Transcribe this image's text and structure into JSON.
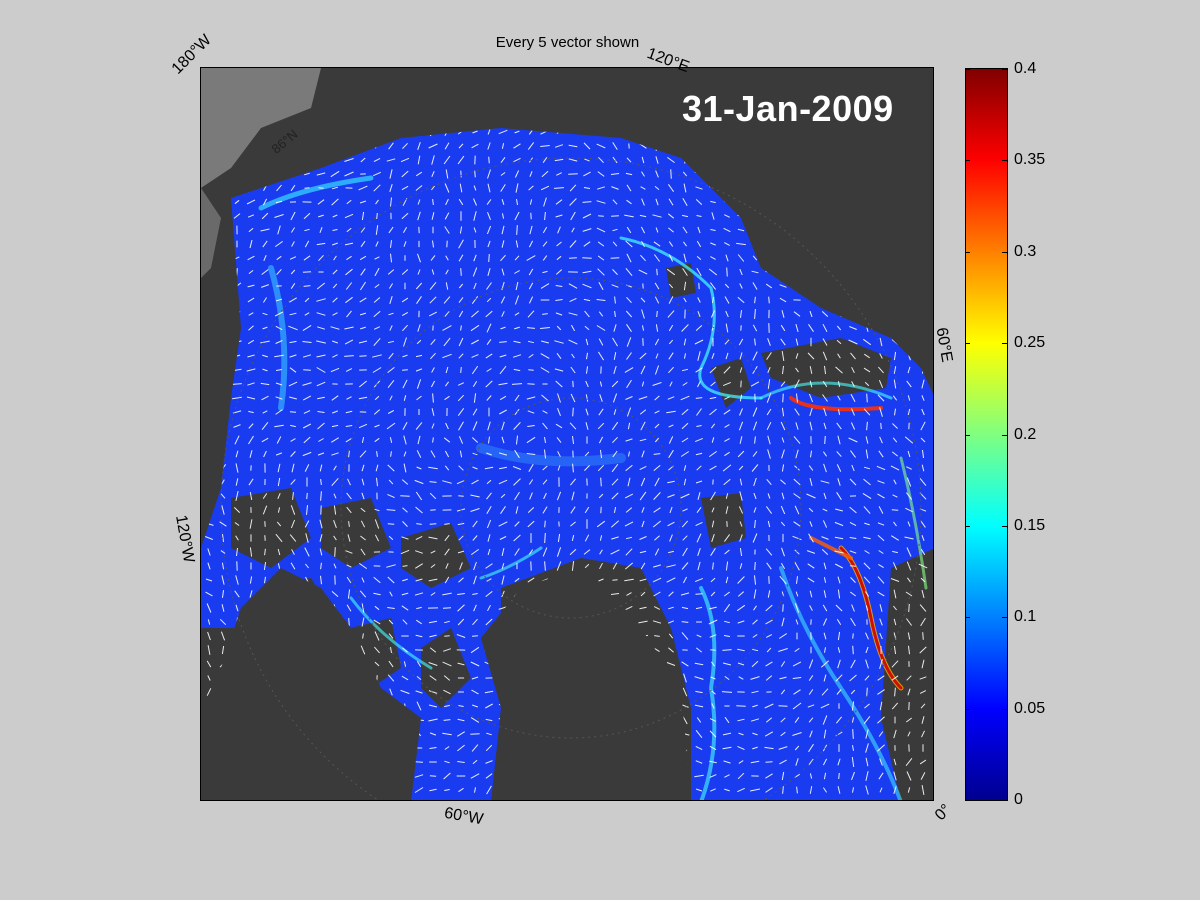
{
  "title": "Every 5 vector shown",
  "date": "31-Jan-2009",
  "longitude_labels": [
    "180°W",
    "120°E",
    "60°E",
    "120°W",
    "60°W",
    "0°"
  ],
  "latitude_labels": [
    "86°N"
  ],
  "colorbar": {
    "ticks": [
      "0",
      "0.05",
      "0.1",
      "0.15",
      "0.2",
      "0.25",
      "0.3",
      "0.35",
      "0.4"
    ],
    "min": 0,
    "max": 0.4,
    "colormap": "jet"
  },
  "colors": {
    "background": "#cccccc",
    "land": "#3a3a3a",
    "land_light": "#7a7a7a",
    "ice_low": "#1a3cf0",
    "vector": "#ffffff"
  }
}
